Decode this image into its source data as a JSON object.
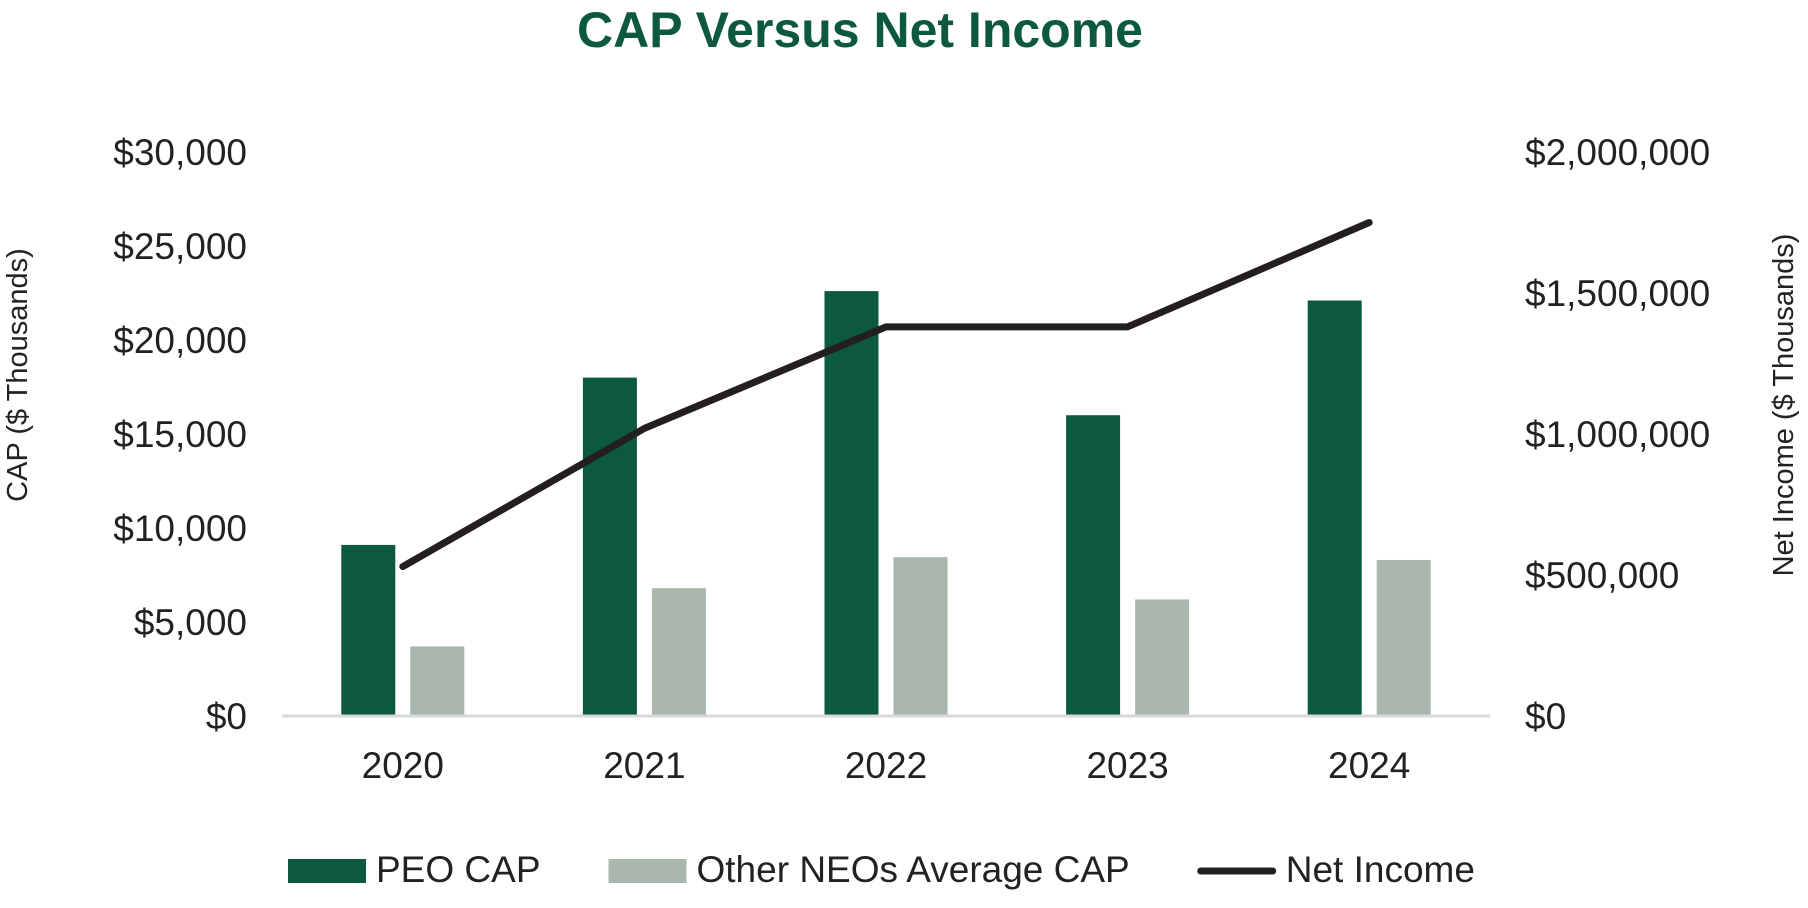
{
  "chart_data": {
    "type": "bar",
    "title": "CAP Versus Net Income",
    "categories": [
      "2020",
      "2021",
      "2022",
      "2023",
      "2024"
    ],
    "series": [
      {
        "name": "PEO CAP",
        "type": "bar",
        "axis": "left",
        "color": "#0c5841",
        "values": [
          9100,
          18000,
          22600,
          16000,
          22100
        ]
      },
      {
        "name": "Other NEOs Average CAP",
        "type": "bar",
        "axis": "left",
        "color": "#a9b7ad",
        "values": [
          3700,
          6800,
          8450,
          6200,
          8300
        ]
      },
      {
        "name": "Net Income",
        "type": "line",
        "axis": "right",
        "color": "#231f20",
        "values": [
          530000,
          1020000,
          1380000,
          1380000,
          1750000
        ]
      }
    ],
    "y_left": {
      "label": "CAP ($ Thousands)",
      "range": [
        0,
        30000
      ],
      "ticks": [
        0,
        5000,
        10000,
        15000,
        20000,
        25000,
        30000
      ],
      "tick_labels": [
        "$0",
        "$5,000",
        "$10,000",
        "$15,000",
        "$20,000",
        "$25,000",
        "$30,000"
      ]
    },
    "y_right": {
      "label": "Net Income ($ Thousands)",
      "range": [
        0,
        2000000
      ],
      "ticks": [
        0,
        500000,
        1000000,
        1500000,
        2000000
      ],
      "tick_labels": [
        "$0",
        "$500,000",
        "$1,000,000",
        "$1,500,000",
        "$2,000,000"
      ]
    },
    "grid": false,
    "legend_position": "bottom",
    "colors": {
      "title": "#0c5841",
      "axis_line": "#d9d9d9"
    }
  }
}
